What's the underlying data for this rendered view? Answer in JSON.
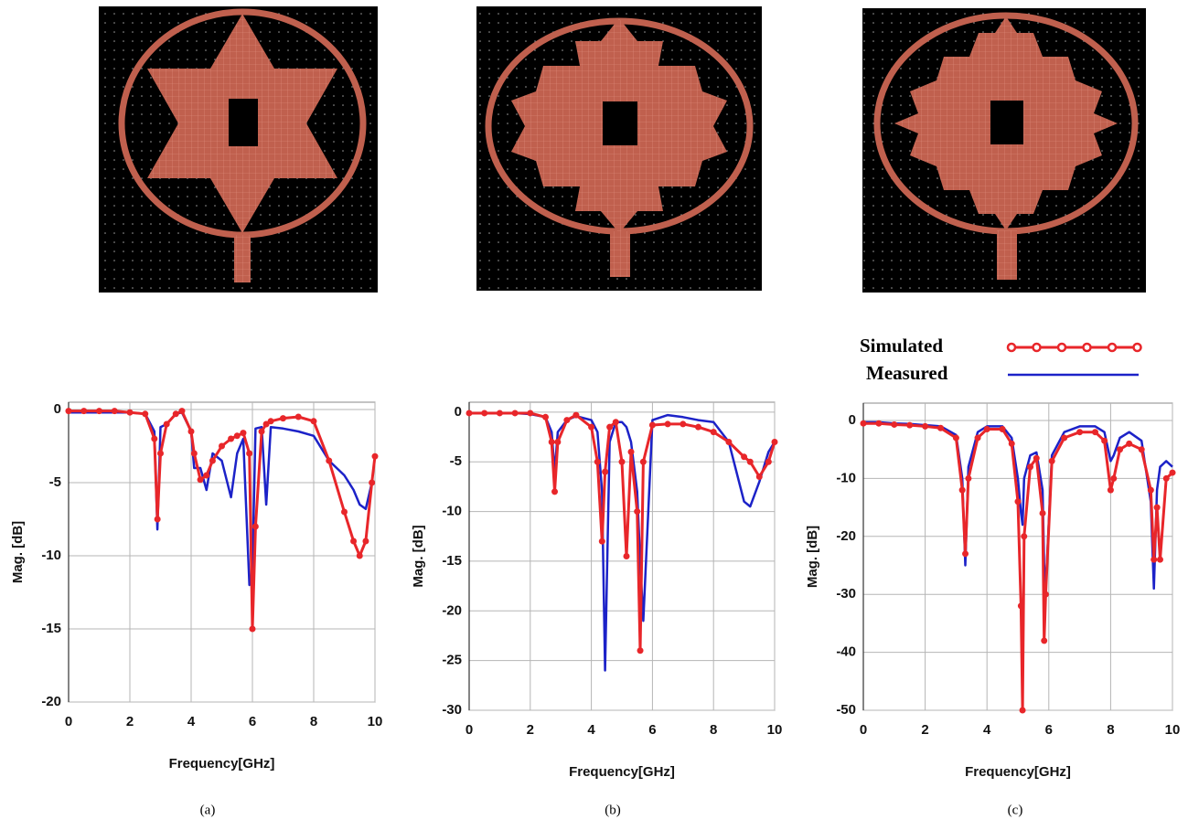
{
  "chart_data": [
    {
      "type": "line",
      "caption": "(a)",
      "x_label": "Frequency[GHz]",
      "y_label": "Mag. [dB]",
      "x": [
        0,
        0.5,
        1,
        1.5,
        2,
        2.5,
        2.8,
        2.9,
        3.0,
        3.2,
        3.5,
        3.7,
        4.0,
        4.1,
        4.3,
        4.5,
        4.7,
        5.0,
        5.3,
        5.5,
        5.7,
        5.9,
        6.0,
        6.1,
        6.3,
        6.45,
        6.6,
        7.0,
        7.5,
        8.0,
        8.5,
        9.0,
        9.3,
        9.5,
        9.7,
        9.9,
        10
      ],
      "series": [
        {
          "color": "#e8262a",
          "markers": true,
          "values": [
            -0.1,
            -0.1,
            -0.1,
            -0.1,
            -0.2,
            -0.3,
            -2,
            -7.5,
            -3,
            -1,
            -0.3,
            -0.1,
            -1.5,
            -3,
            -4.8,
            -4.5,
            -3.5,
            -2.5,
            -2,
            -1.8,
            -1.6,
            -3,
            -15,
            -8,
            -1.5,
            -1,
            -0.8,
            -0.6,
            -0.5,
            -0.8,
            -3.5,
            -7,
            -9,
            -10,
            -9,
            -5,
            -3.2
          ]
        },
        {
          "color": "#1c22c8",
          "markers": false,
          "values": [
            -0.2,
            -0.2,
            -0.2,
            -0.2,
            -0.2,
            -0.3,
            -1.5,
            -8.2,
            -1.2,
            -1,
            -0.3,
            -0.2,
            -1.5,
            -4,
            -4,
            -5.5,
            -3,
            -3.5,
            -6,
            -3,
            -2,
            -12,
            -11,
            -1.3,
            -1.2,
            -6.5,
            -1.2,
            -1.3,
            -1.5,
            -1.8,
            -3.5,
            -4.5,
            -5.5,
            -6.5,
            -6.8,
            -5,
            -5
          ]
        }
      ],
      "xlim": [
        0,
        10
      ],
      "xticks": [
        0,
        2,
        4,
        6,
        8,
        10
      ],
      "ylim": [
        -20,
        0.5
      ],
      "yticks": [
        0,
        -5,
        -10,
        -15,
        -20
      ],
      "grid": true
    },
    {
      "type": "line",
      "caption": "(b)",
      "x_label": "Frequency[GHz]",
      "y_label": "Mag. [dB]",
      "x": [
        0,
        0.5,
        1,
        1.5,
        2,
        2.5,
        2.7,
        2.8,
        2.9,
        3.2,
        3.5,
        4.0,
        4.2,
        4.35,
        4.45,
        4.6,
        4.8,
        5.0,
        5.15,
        5.3,
        5.5,
        5.6,
        5.7,
        6.0,
        6.5,
        7.0,
        7.5,
        8.0,
        8.5,
        9.0,
        9.2,
        9.5,
        9.8,
        10
      ],
      "series": [
        {
          "color": "#e8262a",
          "markers": true,
          "values": [
            -0.1,
            -0.1,
            -0.1,
            -0.1,
            -0.1,
            -0.5,
            -3,
            -8,
            -3,
            -0.8,
            -0.3,
            -1.5,
            -5,
            -13,
            -6,
            -1.5,
            -1,
            -5,
            -14.5,
            -4,
            -10,
            -24,
            -5,
            -1.3,
            -1.2,
            -1.2,
            -1.5,
            -2,
            -3,
            -4.5,
            -5,
            -6.5,
            -5,
            -3
          ]
        },
        {
          "color": "#1c22c8",
          "markers": false,
          "values": [
            -0.1,
            -0.1,
            -0.1,
            -0.1,
            -0.2,
            -0.5,
            -2,
            -6,
            -2,
            -0.8,
            -0.4,
            -0.8,
            -2,
            -8,
            -26,
            -3,
            -1,
            -1,
            -1.5,
            -3,
            -8,
            -15,
            -21,
            -0.8,
            -0.3,
            -0.5,
            -0.8,
            -1,
            -3,
            -9,
            -9.5,
            -7,
            -4,
            -3
          ]
        }
      ],
      "xlim": [
        0,
        10
      ],
      "xticks": [
        0,
        2,
        4,
        6,
        8,
        10
      ],
      "ylim": [
        -30,
        1
      ],
      "yticks": [
        0,
        -5,
        -10,
        -15,
        -20,
        -25,
        -30
      ],
      "grid": true
    },
    {
      "type": "line",
      "caption": "(c)",
      "x_label": "Frequency[GHz]",
      "y_label": "Mag. [dB]",
      "legend": "above",
      "x": [
        0,
        0.5,
        1,
        1.5,
        2,
        2.5,
        3.0,
        3.2,
        3.3,
        3.4,
        3.7,
        4.0,
        4.5,
        4.8,
        5.0,
        5.1,
        5.15,
        5.2,
        5.4,
        5.6,
        5.8,
        5.85,
        5.9,
        6.1,
        6.5,
        7,
        7.5,
        7.8,
        8.0,
        8.1,
        8.3,
        8.6,
        9.0,
        9.3,
        9.4,
        9.5,
        9.6,
        9.8,
        10
      ],
      "series": [
        {
          "name": "Simulated",
          "color": "#e8262a",
          "markers": true,
          "values": [
            -0.5,
            -0.5,
            -0.7,
            -0.8,
            -1,
            -1.3,
            -3,
            -12,
            -23,
            -10,
            -3,
            -1.5,
            -1.5,
            -4,
            -14,
            -32,
            -50,
            -20,
            -8,
            -6.5,
            -16,
            -38,
            -30,
            -7,
            -3,
            -2,
            -2,
            -3.5,
            -12,
            -10,
            -5,
            -4,
            -5,
            -12,
            -24,
            -15,
            -24,
            -10,
            -9
          ]
        },
        {
          "name": "Measured",
          "color": "#1c22c8",
          "markers": false,
          "values": [
            -0.3,
            -0.3,
            -0.5,
            -0.6,
            -0.8,
            -1,
            -2.5,
            -10,
            -25,
            -8,
            -2,
            -1,
            -1,
            -3,
            -10,
            -16,
            -18,
            -10,
            -6,
            -5.5,
            -12,
            -25,
            -29,
            -6,
            -2,
            -1,
            -1,
            -2,
            -7,
            -6,
            -3,
            -2,
            -3.5,
            -14,
            -29,
            -12,
            -8,
            -7,
            -8
          ]
        }
      ],
      "xlim": [
        0,
        10
      ],
      "xticks": [
        0,
        2,
        4,
        6,
        8,
        10
      ],
      "ylim": [
        -50,
        3
      ],
      "yticks": [
        0,
        -10,
        -20,
        -30,
        -40,
        -50
      ],
      "grid": true
    }
  ]
}
